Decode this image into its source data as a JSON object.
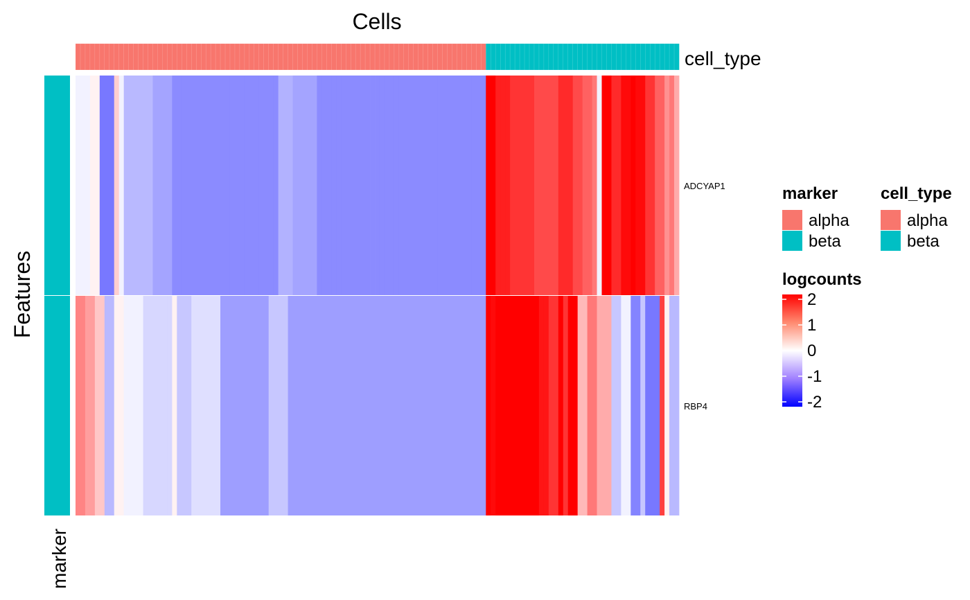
{
  "title": "Cells",
  "y_axis_label": "Features",
  "row_annotation_label": "marker",
  "column_annotation_label": "cell_type",
  "colors": {
    "alpha": "#F8766D",
    "beta": "#00BFC4",
    "scale_low": "#0000FF",
    "scale_mid": "#FFFFFF",
    "scale_high": "#FF0000"
  },
  "legends": {
    "marker": {
      "title": "marker",
      "items": [
        {
          "label": "alpha",
          "color": "#F8766D"
        },
        {
          "label": "beta",
          "color": "#00BFC4"
        }
      ]
    },
    "cell_type": {
      "title": "cell_type",
      "items": [
        {
          "label": "alpha",
          "color": "#F8766D"
        },
        {
          "label": "beta",
          "color": "#00BFC4"
        }
      ]
    },
    "logcounts": {
      "title": "logcounts",
      "range": [
        -2,
        2
      ],
      "ticks": [
        "2",
        "1",
        "0",
        "-1",
        "-2"
      ]
    }
  },
  "chart_data": {
    "type": "heatmap",
    "x_title": "Cells",
    "y_title": "Features",
    "rows": [
      {
        "feature": "ADCYAP1",
        "marker": "beta"
      },
      {
        "feature": "RBP4",
        "marker": "beta"
      }
    ],
    "column_groups": [
      {
        "cell_type": "alpha",
        "n_cells": 85
      },
      {
        "cell_type": "beta",
        "n_cells": 40
      }
    ],
    "color_scale": {
      "name": "logcounts",
      "min": -2,
      "mid": 0,
      "max": 2,
      "colors": [
        "#0000FF",
        "#FFFFFF",
        "#FF0000"
      ]
    },
    "values": {
      "ADCYAP1": [
        -0.05,
        -0.05,
        -0.05,
        0.05,
        0.05,
        -0.9,
        -0.9,
        -0.9,
        0.25,
        -0.05,
        -0.4,
        -0.4,
        -0.4,
        -0.4,
        -0.4,
        -0.4,
        -0.55,
        -0.55,
        -0.55,
        -0.55,
        -0.75,
        -0.75,
        -0.75,
        -0.75,
        -0.75,
        -0.75,
        -0.75,
        -0.75,
        -0.75,
        -0.75,
        -0.75,
        -0.75,
        -0.75,
        -0.75,
        -0.75,
        -0.75,
        -0.75,
        -0.75,
        -0.75,
        -0.75,
        -0.75,
        -0.75,
        -0.45,
        -0.45,
        -0.45,
        -0.55,
        -0.55,
        -0.55,
        -0.55,
        -0.55,
        -0.75,
        -0.75,
        -0.75,
        -0.75,
        -0.75,
        -0.75,
        -0.75,
        -0.75,
        -0.75,
        -0.75,
        -0.75,
        -0.75,
        -0.75,
        -0.75,
        -0.75,
        -0.75,
        -0.75,
        -0.75,
        -0.75,
        -0.75,
        -0.75,
        -0.75,
        -0.75,
        -0.75,
        -0.75,
        -0.75,
        -0.75,
        -0.75,
        -0.75,
        -0.75,
        -0.75,
        -0.75,
        -0.75,
        -0.75,
        -0.75,
        2.1,
        2.1,
        1.7,
        1.7,
        1.7,
        1.5,
        1.5,
        1.5,
        1.5,
        1.5,
        1.3,
        1.3,
        1.3,
        1.3,
        1.3,
        1.6,
        1.6,
        1.6,
        1.3,
        1.3,
        1.1,
        1.1,
        0.9,
        -0.05,
        2.0,
        2.0,
        1.6,
        1.6,
        1.9,
        1.9,
        2.2,
        1.9,
        1.9,
        1.5,
        1.5,
        1.1,
        1.1,
        0.7,
        0.9,
        0.5
      ],
      "RBP4": [
        0.8,
        0.8,
        0.6,
        0.6,
        0.3,
        0.3,
        -0.4,
        -0.4,
        0.05,
        0.05,
        -0.05,
        -0.05,
        -0.05,
        -0.05,
        -0.2,
        -0.2,
        -0.2,
        -0.2,
        -0.2,
        -0.2,
        0.05,
        -0.3,
        -0.3,
        -0.3,
        -0.15,
        -0.15,
        -0.15,
        -0.15,
        -0.15,
        -0.15,
        -0.6,
        -0.6,
        -0.6,
        -0.6,
        -0.6,
        -0.6,
        -0.6,
        -0.6,
        -0.6,
        -0.6,
        -0.3,
        -0.3,
        -0.3,
        -0.3,
        -0.6,
        -0.6,
        -0.6,
        -0.6,
        -0.6,
        -0.6,
        -0.6,
        -0.6,
        -0.6,
        -0.6,
        -0.6,
        -0.6,
        -0.6,
        -0.6,
        -0.6,
        -0.6,
        -0.6,
        -0.6,
        -0.6,
        -0.6,
        -0.6,
        -0.6,
        -0.6,
        -0.6,
        -0.6,
        -0.6,
        -0.6,
        -0.6,
        -0.6,
        -0.6,
        -0.6,
        -0.6,
        -0.6,
        -0.6,
        -0.6,
        -0.6,
        -0.6,
        -0.6,
        -0.6,
        -0.6,
        -0.6,
        2.3,
        1.9,
        2.3,
        2.3,
        2.3,
        2.3,
        2.3,
        2.3,
        2.3,
        2.3,
        2.3,
        1.8,
        1.8,
        1.5,
        1.5,
        2.1,
        1.5,
        2.3,
        2.3,
        0.4,
        0.4,
        0.9,
        0.9,
        0.5,
        0.5,
        0.5,
        -0.3,
        -0.3,
        -0.05,
        -0.05,
        -0.8,
        -0.8,
        -0.3,
        -0.9,
        -0.9,
        -0.9,
        1.4,
        0.05,
        -0.4,
        -0.4
      ]
    }
  }
}
